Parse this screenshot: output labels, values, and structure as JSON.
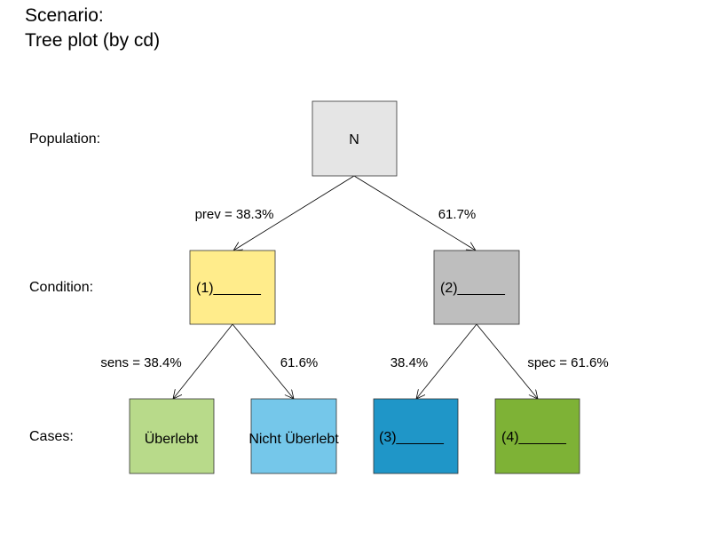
{
  "title": {
    "line1": "Scenario:",
    "line2": "Tree plot (by cd)"
  },
  "row_labels": {
    "population": "Population:",
    "condition": "Condition:",
    "cases": "Cases:"
  },
  "nodes": {
    "population": {
      "label": "N",
      "color": "#e5e5e5"
    },
    "cond_true": {
      "label": "(1)______",
      "color": "#ffec8b"
    },
    "cond_false": {
      "label": "(2)______",
      "color": "#bebebe"
    },
    "hit": {
      "label": "Überlebt",
      "color": "#b8da8a"
    },
    "miss": {
      "label": "Nicht Überlebt",
      "color": "#75c7ea"
    },
    "false_alarm": {
      "label": "(3)______",
      "color": "#1f96c8"
    },
    "correct_rejection": {
      "label": "(4)______",
      "color": "#7eb236"
    }
  },
  "edges": {
    "prev": "prev = 38.3%",
    "prev_complement": "61.7%",
    "sens": "sens = 38.4%",
    "sens_complement": "61.6%",
    "spec_complement": "38.4%",
    "spec": "spec = 61.6%"
  }
}
